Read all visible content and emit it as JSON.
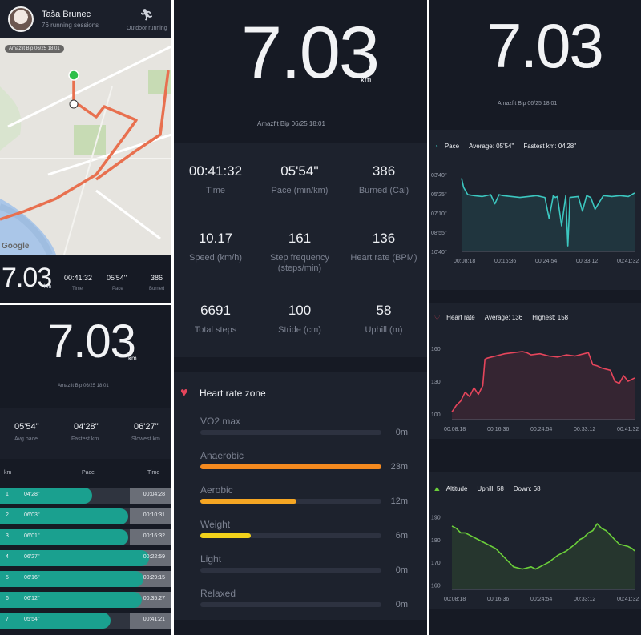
{
  "colors": {
    "accent_teal": "#1aa08f",
    "pace_line": "#3cc7c0",
    "heart_line": "#e5455b",
    "alt_line": "#6bcf3a",
    "zone_orange": "#f58a1f",
    "zone_amber": "#f5a623",
    "zone_yellow": "#f2d21b"
  },
  "summary_card": {
    "user_name": "Taša Brunec",
    "sessions": "76 running sessions",
    "run_icon": "running-person-icon",
    "run_type": "Outdoor running",
    "map_badge": "Amazfit Bip  06/25 18:01",
    "map_attribution": "Google",
    "distance": "7.03",
    "unit": "km",
    "stats": [
      {
        "value": "00:41:32",
        "label": "Time"
      },
      {
        "value": "05'54''",
        "label": "Pace"
      },
      {
        "value": "386",
        "label": "Burned"
      }
    ]
  },
  "splits_card": {
    "distance": "7.03",
    "unit": "km",
    "device": "Amazfit Bip   06/25 18:01",
    "summary": [
      {
        "value": "05'54''",
        "label": "Avg pace"
      },
      {
        "value": "04'28''",
        "label": "Fastest km"
      },
      {
        "value": "06'27''",
        "label": "Slowest km"
      }
    ],
    "headers": {
      "km": "km",
      "pace": "Pace",
      "time": "Time"
    },
    "rows": [
      {
        "km": "1",
        "pace": "04'28''",
        "time": "00:04:28",
        "fill": 0.62
      },
      {
        "km": "2",
        "pace": "06'03''",
        "time": "00:10:31",
        "fill": 0.86
      },
      {
        "km": "3",
        "pace": "06'01''",
        "time": "00:16:32",
        "fill": 0.86
      },
      {
        "km": "4",
        "pace": "06'27''",
        "time": "00:22:59",
        "fill": 1.0
      },
      {
        "km": "5",
        "pace": "06'16''",
        "time": "00:29:15",
        "fill": 0.96
      },
      {
        "km": "6",
        "pace": "06'12''",
        "time": "00:35:27",
        "fill": 0.95
      },
      {
        "km": "7",
        "pace": "05'54''",
        "time": "00:41:21",
        "fill": 0.74
      }
    ]
  },
  "detail_card": {
    "distance": "7.03",
    "unit": "km",
    "device": "Amazfit Bip   06/25 18:01",
    "metrics": [
      {
        "value": "00:41:32",
        "label": "Time"
      },
      {
        "value": "05'54''",
        "label": "Pace (min/km)"
      },
      {
        "value": "386",
        "label": "Burned (Cal)"
      },
      {
        "value": "10.17",
        "label": "Speed (km/h)"
      },
      {
        "value": "161",
        "label": "Step frequency (steps/min)"
      },
      {
        "value": "136",
        "label": "Heart rate (BPM)"
      },
      {
        "value": "6691",
        "label": "Total steps"
      },
      {
        "value": "100",
        "label": "Stride (cm)"
      },
      {
        "value": "58",
        "label": "Uphill (m)"
      }
    ],
    "zone_title": "Heart rate zone",
    "zones": [
      {
        "label": "VO2 max",
        "value": "0m",
        "fraction": 0.0,
        "color": "#2d3240"
      },
      {
        "label": "Anaerobic",
        "value": "23m",
        "fraction": 1.0,
        "color": "#f58a1f"
      },
      {
        "label": "Aerobic",
        "value": "12m",
        "fraction": 0.53,
        "color": "#f5a623"
      },
      {
        "label": "Weight",
        "value": "6m",
        "fraction": 0.28,
        "color": "#f2d21b"
      },
      {
        "label": "Light",
        "value": "0m",
        "fraction": 0.0,
        "color": "#2d3240"
      },
      {
        "label": "Relaxed",
        "value": "0m",
        "fraction": 0.0,
        "color": "#2d3240"
      }
    ]
  },
  "charts_card": {
    "distance": "7.03",
    "unit": "km",
    "device": "Amazfit Bip   06/25 18:01",
    "pace": {
      "title": "Pace",
      "average": "Average: 05'54\"",
      "fastest": "Fastest km: 04'28\""
    },
    "heart": {
      "title": "Heart rate",
      "average": "Average: 136",
      "highest": "Highest: 158"
    },
    "altitude": {
      "title": "Altitude",
      "uphill": "Uphill: 58",
      "down": "Down: 68"
    }
  },
  "chart_data": [
    {
      "type": "line",
      "title": "Pace",
      "x_ticks": [
        "00:08:18",
        "00:16:36",
        "00:24:54",
        "00:33:12",
        "00:41:32"
      ],
      "y_ticks": [
        "03'40''",
        "05'25''",
        "07'10''",
        "08'55''",
        "10'40''"
      ],
      "ylim_seconds": [
        220,
        640
      ],
      "invert_y": true,
      "x_minutes": [
        0,
        0.5,
        1.5,
        3,
        5,
        7,
        8,
        9,
        10,
        12,
        14,
        16,
        18,
        20,
        21,
        22,
        22.5,
        23,
        24,
        25,
        25.5,
        26,
        28,
        29,
        30,
        31,
        32,
        34,
        36,
        38,
        40,
        41.5
      ],
      "y_seconds": [
        240,
        290,
        330,
        335,
        340,
        330,
        380,
        330,
        335,
        340,
        345,
        340,
        335,
        345,
        460,
        335,
        345,
        340,
        500,
        335,
        610,
        345,
        340,
        420,
        335,
        345,
        410,
        335,
        340,
        335,
        340,
        320
      ]
    },
    {
      "type": "line",
      "title": "Heart rate",
      "x_ticks": [
        "00:08:18",
        "00:16:36",
        "00:24:54",
        "00:33:12",
        "00:41:32"
      ],
      "y_ticks": [
        160,
        130,
        100
      ],
      "ylim": [
        95,
        165
      ],
      "x_minutes": [
        0,
        1,
        2,
        3,
        4,
        5,
        6,
        7,
        7.5,
        8,
        9,
        10,
        12,
        14,
        16,
        17,
        18,
        20,
        22,
        24,
        26,
        28,
        30,
        31,
        32,
        33,
        34,
        36,
        37,
        38,
        39,
        40,
        41,
        41.5
      ],
      "y_values": [
        102,
        108,
        112,
        120,
        116,
        124,
        118,
        126,
        150,
        151,
        152,
        153,
        155,
        156,
        157,
        156,
        154,
        155,
        153,
        152,
        154,
        153,
        155,
        156,
        145,
        144,
        142,
        140,
        130,
        128,
        135,
        130,
        132,
        133
      ]
    },
    {
      "type": "line",
      "title": "Altitude",
      "x_ticks": [
        "00:08:18",
        "00:16:36",
        "00:24:54",
        "00:33:12",
        "00:41:32"
      ],
      "y_ticks": [
        190,
        180,
        170,
        160
      ],
      "ylim": [
        158,
        192
      ],
      "x_minutes": [
        0,
        1,
        2,
        3,
        4,
        5,
        6,
        8,
        10,
        12,
        14,
        16,
        18,
        19,
        20,
        22,
        24,
        26,
        28,
        29,
        30,
        31,
        32,
        33,
        34,
        35,
        36,
        37,
        38,
        40,
        41,
        41.5
      ],
      "y_values": [
        186,
        185,
        183,
        183,
        182,
        181,
        180,
        178,
        176,
        172,
        168,
        167,
        168,
        167,
        168,
        170,
        173,
        175,
        178,
        180,
        181,
        183,
        184,
        187,
        185,
        184,
        182,
        180,
        178,
        177,
        176,
        175
      ]
    }
  ]
}
